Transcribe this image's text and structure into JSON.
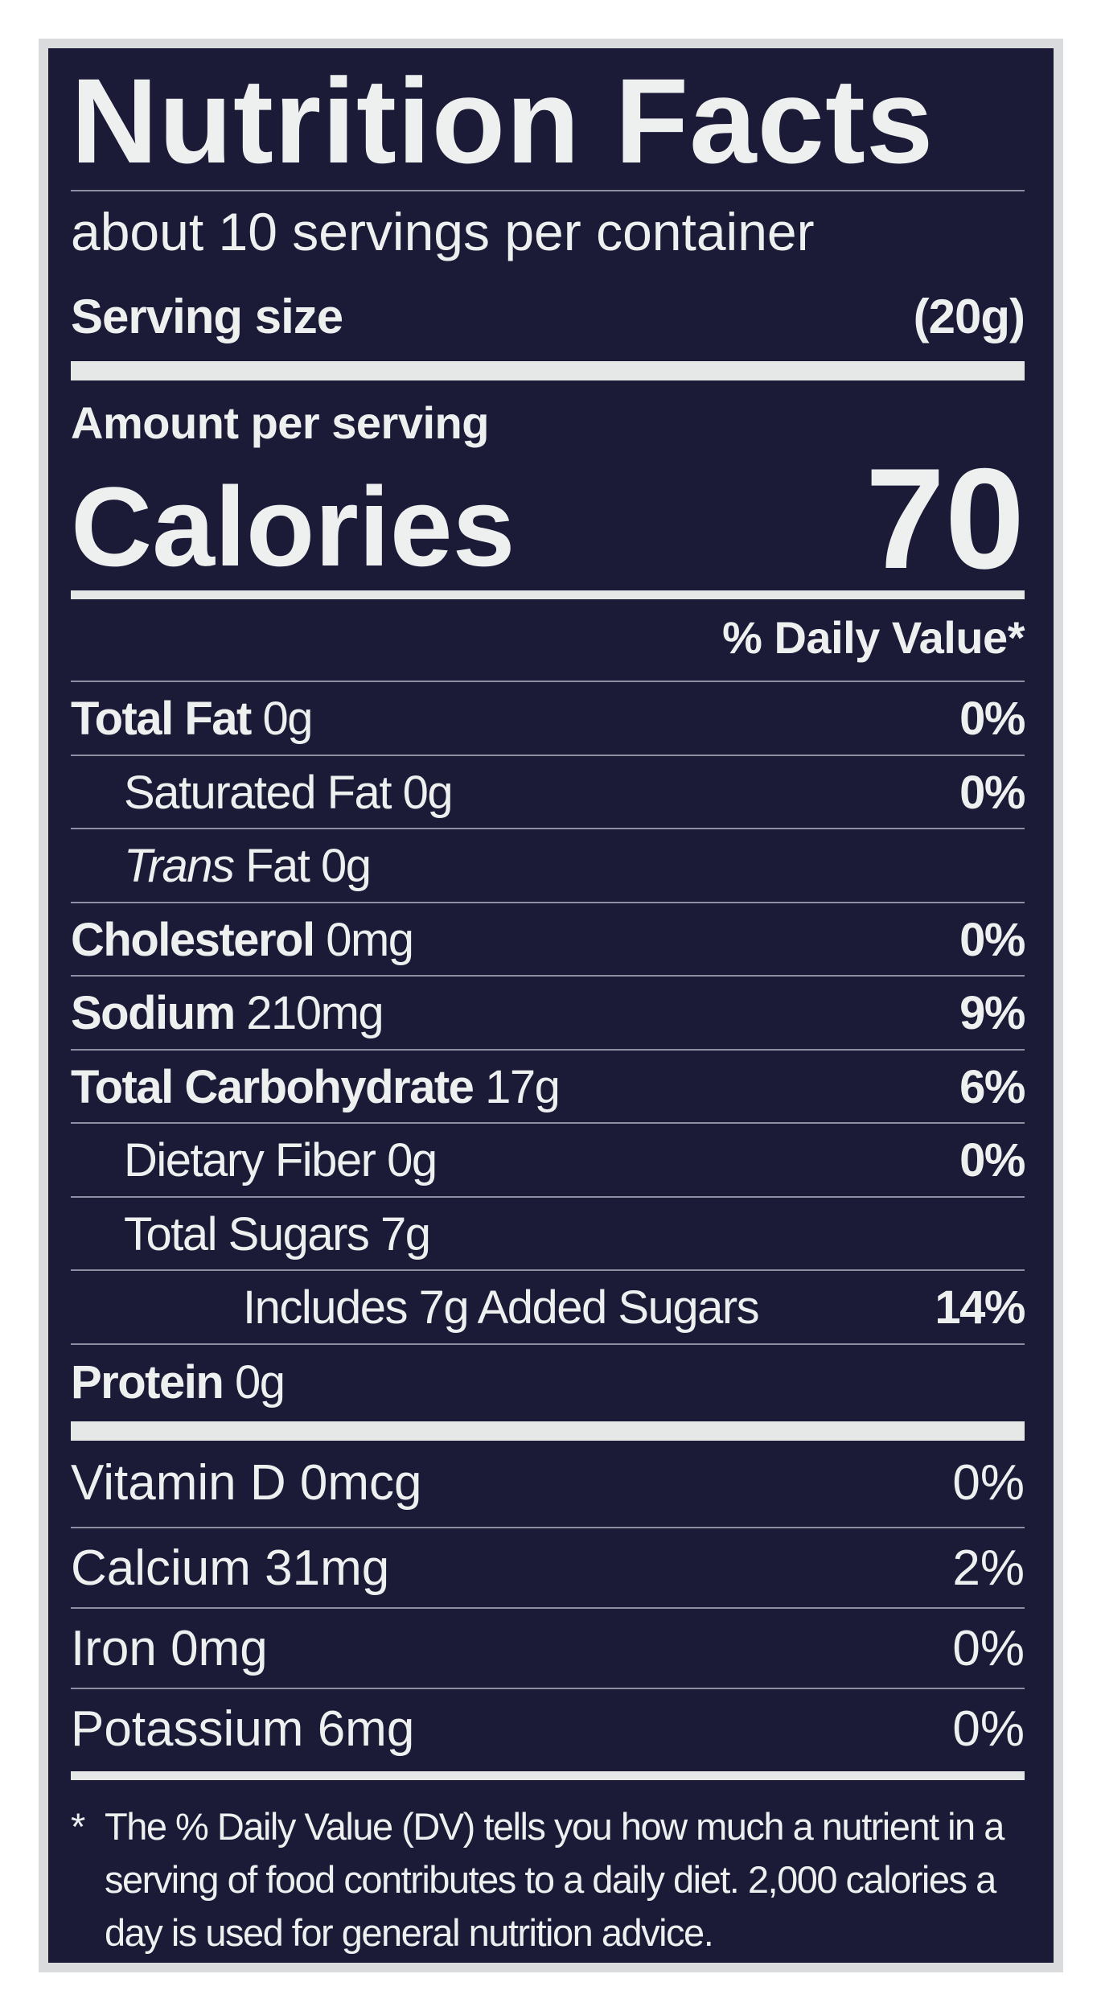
{
  "title": "Nutrition Facts",
  "servings_per_container": "about 10 servings per container",
  "serving_size": {
    "label": "Serving size",
    "value": "(20g)"
  },
  "amount_per_serving": "Amount per serving",
  "calories": {
    "label": "Calories",
    "value": "70"
  },
  "daily_value_header": "% Daily Value*",
  "nutrients": [
    {
      "name": "Total Fat",
      "amount": "0g",
      "dv": "0%"
    },
    {
      "name": "Saturated Fat",
      "amount": "0g",
      "dv": "0%"
    },
    {
      "name": "Trans",
      "name_suffix": "Fat",
      "amount": "0g",
      "dv": ""
    },
    {
      "name": "Cholesterol",
      "amount": "0mg",
      "dv": "0%"
    },
    {
      "name": "Sodium",
      "amount": "210mg",
      "dv": "9%"
    },
    {
      "name": "Total Carbohydrate",
      "amount": "17g",
      "dv": "6%"
    },
    {
      "name": "Dietary Fiber",
      "amount": "0g",
      "dv": "0%"
    },
    {
      "name": "Total Sugars",
      "amount": "7g",
      "dv": ""
    },
    {
      "name": "Includes 7g Added Sugars",
      "amount": "",
      "dv": "14%"
    },
    {
      "name": "Protein",
      "amount": "0g",
      "dv": ""
    }
  ],
  "vitamins": [
    {
      "name": "Vitamin D",
      "amount": "0mcg",
      "dv": "0%"
    },
    {
      "name": "Calcium",
      "amount": "31mg",
      "dv": "2%"
    },
    {
      "name": "Iron",
      "amount": "0mg",
      "dv": "0%"
    },
    {
      "name": "Potassium",
      "amount": "6mg",
      "dv": "0%"
    }
  ],
  "footnote": {
    "asterisk": "*",
    "text": "The % Daily Value (DV) tells you how much a nutrient in a serving of food contributes to a daily diet. 2,000 calories a day is used for general nutrition advice."
  },
  "colors": {
    "background": "#1b1b38",
    "text": "#eef0ef",
    "border": "#d9dbdc"
  }
}
